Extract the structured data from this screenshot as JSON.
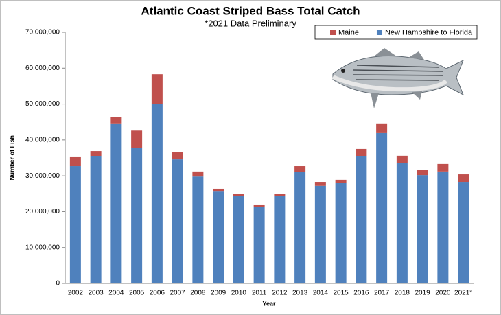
{
  "chart_data": {
    "type": "stacked-bar",
    "title": "Atlantic Coast Striped Bass Total Catch",
    "subtitle": "*2021 Data Preliminary",
    "x_label": "Year",
    "y_label": "Number of Fish",
    "categories": [
      "2002",
      "2003",
      "2004",
      "2005",
      "2006",
      "2007",
      "2008",
      "2009",
      "2010",
      "2011",
      "2012",
      "2013",
      "2014",
      "2015",
      "2016",
      "2017",
      "2018",
      "2019",
      "2020",
      "2021*"
    ],
    "series": [
      {
        "name": "New Hampshire to Florida",
        "color": "#4f81bd",
        "values": [
          32700000,
          35400000,
          44600000,
          37700000,
          50100000,
          34600000,
          29800000,
          25600000,
          24300000,
          21400000,
          24300000,
          31000000,
          27200000,
          28100000,
          35400000,
          41900000,
          33500000,
          30200000,
          31200000,
          28300000
        ]
      },
      {
        "name": "Maine",
        "color": "#c0504d",
        "values": [
          2500000,
          1500000,
          1700000,
          4900000,
          8200000,
          2100000,
          1400000,
          800000,
          700000,
          600000,
          600000,
          1700000,
          1100000,
          800000,
          2100000,
          2700000,
          2100000,
          1500000,
          2100000,
          2100000
        ]
      }
    ],
    "ylim": [
      0,
      70000000
    ],
    "yticks": [
      0,
      {
        "value": 10000000,
        "label": "10,000,000"
      },
      {
        "value": 20000000,
        "label": "20,000,000"
      },
      {
        "value": 30000000,
        "label": "30,000,000"
      },
      {
        "value": 40000000,
        "label": "40,000,000"
      },
      {
        "value": 50000000,
        "label": "50,000,000"
      },
      {
        "value": 60000000,
        "label": "60,000,000"
      },
      {
        "value": 70000000,
        "label": "70,000,000"
      }
    ],
    "legend": "top-right"
  }
}
